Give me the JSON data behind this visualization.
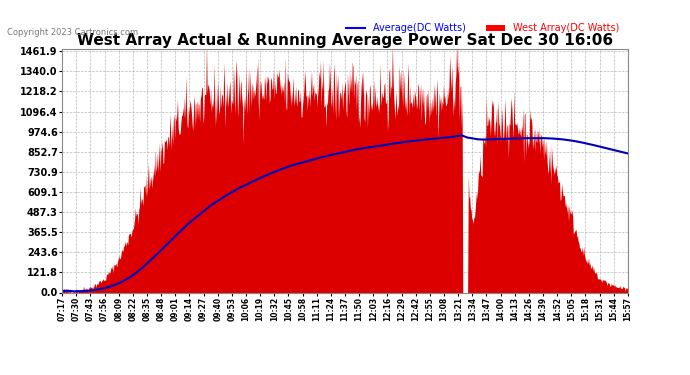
{
  "title": "West Array Actual & Running Average Power Sat Dec 30 16:06",
  "copyright": "Copyright 2023 Cartronics.com",
  "legend_avg": "Average(DC Watts)",
  "legend_west": "West Array(DC Watts)",
  "ylabel_values": [
    0.0,
    121.8,
    243.6,
    365.5,
    487.3,
    609.1,
    730.9,
    852.7,
    974.6,
    1096.4,
    1218.2,
    1340.0,
    1461.9
  ],
  "xtick_labels": [
    "07:17",
    "07:30",
    "07:43",
    "07:56",
    "08:09",
    "08:22",
    "08:35",
    "08:48",
    "09:01",
    "09:14",
    "09:27",
    "09:40",
    "09:53",
    "10:06",
    "10:19",
    "10:32",
    "10:45",
    "10:58",
    "11:11",
    "11:24",
    "11:37",
    "11:50",
    "12:03",
    "12:16",
    "12:29",
    "12:42",
    "12:55",
    "13:08",
    "13:21",
    "13:34",
    "13:47",
    "14:00",
    "14:13",
    "14:26",
    "14:39",
    "14:52",
    "15:05",
    "15:18",
    "15:31",
    "15:44",
    "15:57"
  ],
  "ymin": 0.0,
  "ymax": 1461.9,
  "bar_color": "#dd0000",
  "line_color": "#0000bb",
  "legend_avg_color": "#0000ff",
  "legend_west_color": "#ff0000",
  "copyright_color": "#777777",
  "grid_color": "#aaaaaa",
  "title_fontsize": 11,
  "copyright_fontsize": 6,
  "legend_fontsize": 7,
  "ytick_fontsize": 7,
  "xtick_fontsize": 5.5
}
